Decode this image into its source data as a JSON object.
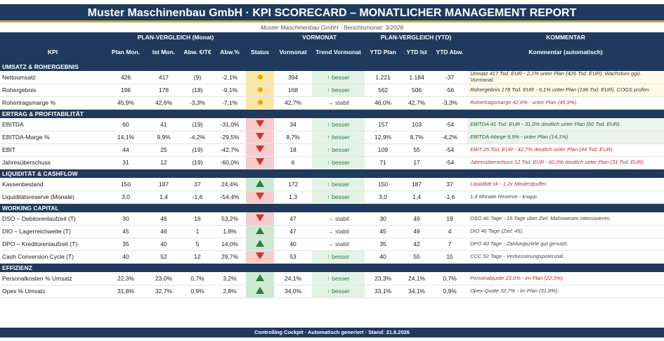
{
  "title": "Muster Maschinenbau GmbH  ·  KPI SCORECARD – MONATLICHER MANAGEMENT REPORT",
  "subtitle": "Muster Maschinenbau GmbH  ·  Berichtsmonat: 3/2026",
  "groups": {
    "plan": "PLAN-VERGLEICH (Monat)",
    "vormonat": "VORMONAT",
    "ytd": "PLAN-VERGLEICH (YTD)",
    "kommentar": "KOMMENTAR"
  },
  "columns": {
    "kpi": "KPI",
    "plan": "Plan Mon.",
    "ist": "Ist Mon.",
    "abw_abs": "Abw. €/T€",
    "abw_pct": "Abw.%",
    "status": "Status",
    "vormonat": "Vormonat",
    "trend": "Trend Vormonat",
    "ytd_plan": "YTD Plan",
    "ytd_ist": "YTD Ist",
    "ytd_abw": "YTD Abw.",
    "kommentar": "Kommentar (automatisch)"
  },
  "sections": [
    {
      "name": "UMSATZ & ROHERGEBNIS",
      "rows": [
        {
          "kpi": "Nettoumsatz",
          "plan": "426",
          "ist": "417",
          "abw": "(9)",
          "abwp": "-2,1%",
          "status": "warn",
          "vm": "394",
          "trend": "↑ besser",
          "trendType": "good",
          "ytdp": "1.221",
          "ytdi": "1.184",
          "ytda": "-37",
          "comment": "Umsatz 417 Tsd. EUR - 2,1% unter Plan (426 Tsd. EUR). Wachstum ggü. Vormonat.",
          "ctype": "warn"
        },
        {
          "kpi": "Rohergebnis",
          "plan": "196",
          "ist": "178",
          "abw": "(18)",
          "abwp": "-9,1%",
          "status": "warn",
          "vm": "168",
          "trend": "↑ besser",
          "trendType": "good",
          "ytdp": "562",
          "ytdi": "506",
          "ytda": "-56",
          "comment": "Rohergebnis 178 Tsd. EUR - 9,1% unter Plan (196 Tsd. EUR). COGS prüfen.",
          "ctype": "warn"
        },
        {
          "kpi": "Rohertragsmarge %",
          "plan": "45,9%",
          "ist": "42,6%",
          "abw": "-3,3%",
          "abwp": "-7,1%",
          "status": "warn",
          "vm": "42,7%",
          "trend": "→ stabil",
          "trendType": "flat",
          "ytdp": "46,0%",
          "ytdi": "42,7%",
          "ytda": "-3,3%",
          "comment": "Rohertragsmarge 42,6% - unter Plan (45,9%).",
          "ctype": "bad"
        }
      ]
    },
    {
      "name": "ERTRAG & PROFITABILITÄT",
      "rows": [
        {
          "kpi": "EBITDA",
          "plan": "60",
          "ist": "41",
          "abw": "(19)",
          "abwp": "-31,0%",
          "status": "bad",
          "vm": "34",
          "trend": "↑ besser",
          "trendType": "good",
          "ytdp": "157",
          "ytdi": "103",
          "ytda": "-54",
          "comment": "EBITDA 41 Tsd. EUR - 31,0% deutlich unter Plan (60 Tsd. EUR).",
          "ctype": "good"
        },
        {
          "kpi": "EBITDA-Marge %",
          "plan": "14,1%",
          "ist": "9,9%",
          "abw": "-4,2%",
          "abwp": "-29,5%",
          "status": "bad",
          "vm": "8,7%",
          "trend": "↑ besser",
          "trendType": "good",
          "ytdp": "12,9%",
          "ytdi": "8,7%",
          "ytda": "-4,2%",
          "comment": "EBITDA-Marge 9,9% - unter Plan (14,1%).",
          "ctype": "good"
        },
        {
          "kpi": "EBIT",
          "plan": "44",
          "ist": "25",
          "abw": "(19)",
          "abwp": "-42,7%",
          "status": "bad",
          "vm": "18",
          "trend": "↑ besser",
          "trendType": "good",
          "ytdp": "109",
          "ytdi": "55",
          "ytda": "-54",
          "comment": "EBIT 25 Tsd. EUR - 42,7% deutlich unter Plan (44 Tsd. EUR).",
          "ctype": "bad"
        },
        {
          "kpi": "Jahresüberschuss",
          "plan": "31",
          "ist": "12",
          "abw": "(19)",
          "abwp": "-60,0%",
          "status": "bad",
          "vm": "6",
          "trend": "↑ besser",
          "trendType": "good",
          "ytdp": "71",
          "ytdi": "17",
          "ytda": "-54",
          "comment": "Jahresüberschuss 12 Tsd. EUR - 60,0% deutlich unter Plan (31 Tsd. EUR).",
          "ctype": "bad"
        }
      ]
    },
    {
      "name": "LIQUIDITÄT & CASHFLOW",
      "rows": [
        {
          "kpi": "Kassenbestand",
          "plan": "150",
          "ist": "187",
          "abw": "37",
          "abwp": "24,4%",
          "status": "good",
          "vm": "172",
          "trend": "↑ besser",
          "trendType": "good",
          "ytdp": "150",
          "ytdi": "187",
          "ytda": "37",
          "comment": "Liquidität ok - 1,2x Mindestpuffer.",
          "ctype": "bad"
        },
        {
          "kpi": "Liquiditätsreserve (Monate)",
          "plan": "3,0",
          "ist": "1,4",
          "abw": "-1,6",
          "abwp": "-54,4%",
          "status": "bad",
          "vm": "1,3",
          "trend": "↑ besser",
          "trendType": "good",
          "ytdp": "3,0",
          "ytdi": "1,4",
          "ytda": "-1,6",
          "comment": "1,4 Monate Reserve - knapp.",
          "ctype": "neutral"
        }
      ]
    },
    {
      "name": "WORKING CAPITAL",
      "rows": [
        {
          "kpi": "DSO – Debitorenlaufzeit (T)",
          "plan": "30",
          "ist": "46",
          "abw": "16",
          "abwp": "53,2%",
          "status": "bad",
          "vm": "47",
          "trend": "→ stabil",
          "trendType": "flat",
          "ytdp": "30",
          "ytdi": "49",
          "ytda": "19",
          "comment": "DSO 46 Tage - 16 Tage über Ziel. Mahnwesen intensivieren.",
          "ctype": "neutral"
        },
        {
          "kpi": "DIO – Lagerreichweite (T)",
          "plan": "45",
          "ist": "46",
          "abw": "1",
          "abwp": "1,8%",
          "status": "good",
          "vm": "47",
          "trend": "→ stabil",
          "trendType": "flat",
          "ytdp": "45",
          "ytdi": "49",
          "ytda": "4",
          "comment": "DIO 46 Tage (Ziel: 45).",
          "ctype": "neutral"
        },
        {
          "kpi": "DPO – Kreditorenlaufzeit (T)",
          "plan": "35",
          "ist": "40",
          "abw": "5",
          "abwp": "14,0%",
          "status": "good",
          "vm": "40",
          "trend": "→ stabil",
          "trendType": "flat",
          "ytdp": "35",
          "ytdi": "42",
          "ytda": "7",
          "comment": "DPO 40 Tage - Zahlungsziele gut genutzt.",
          "ctype": "neutral"
        },
        {
          "kpi": "Cash Conversion Cycle (T)",
          "plan": "40",
          "ist": "52",
          "abw": "12",
          "abwp": "29,7%",
          "status": "bad",
          "vm": "53",
          "trend": "↑ besser",
          "trendType": "good",
          "ytdp": "40",
          "ytdi": "55",
          "ytda": "15",
          "comment": "CCC 52 Tage - Verbesserungspotenzial.",
          "ctype": "neutral"
        }
      ]
    },
    {
      "name": "EFFIZIENZ",
      "rows": [
        {
          "kpi": "Personalkosten % Umsatz",
          "plan": "22,3%",
          "ist": "23,0%",
          "abw": "0,7%",
          "abwp": "3,2%",
          "status": "good",
          "vm": "24,1%",
          "trend": "↑ besser",
          "trendType": "good",
          "ytdp": "23,3%",
          "ytdi": "24,1%",
          "ytda": "0,7%",
          "comment": "Personalquote 23,0% - im Plan (22,3%).",
          "ctype": "bad"
        },
        {
          "kpi": "Opex % Umsatz",
          "plan": "31,8%",
          "ist": "32,7%",
          "abw": "0,9%",
          "abwp": "2,8%",
          "status": "good",
          "vm": "34,0%",
          "trend": "↑ besser",
          "trendType": "good",
          "ytdp": "33,1%",
          "ytdi": "34,1%",
          "ytda": "0,9%",
          "comment": "Opex-Quote 32,7% - im Plan (31,8%).",
          "ctype": "neutral"
        }
      ]
    }
  ],
  "footer": "Controlling Cockpit  ·  Automatisch generiert  ·  Stand: 21.8.2026",
  "colors": {
    "navy": "#1f3a5c",
    "gold": "#c8a94a",
    "red": "#d0342c",
    "green": "#2e7d3e",
    "amber": "#f2a100"
  }
}
